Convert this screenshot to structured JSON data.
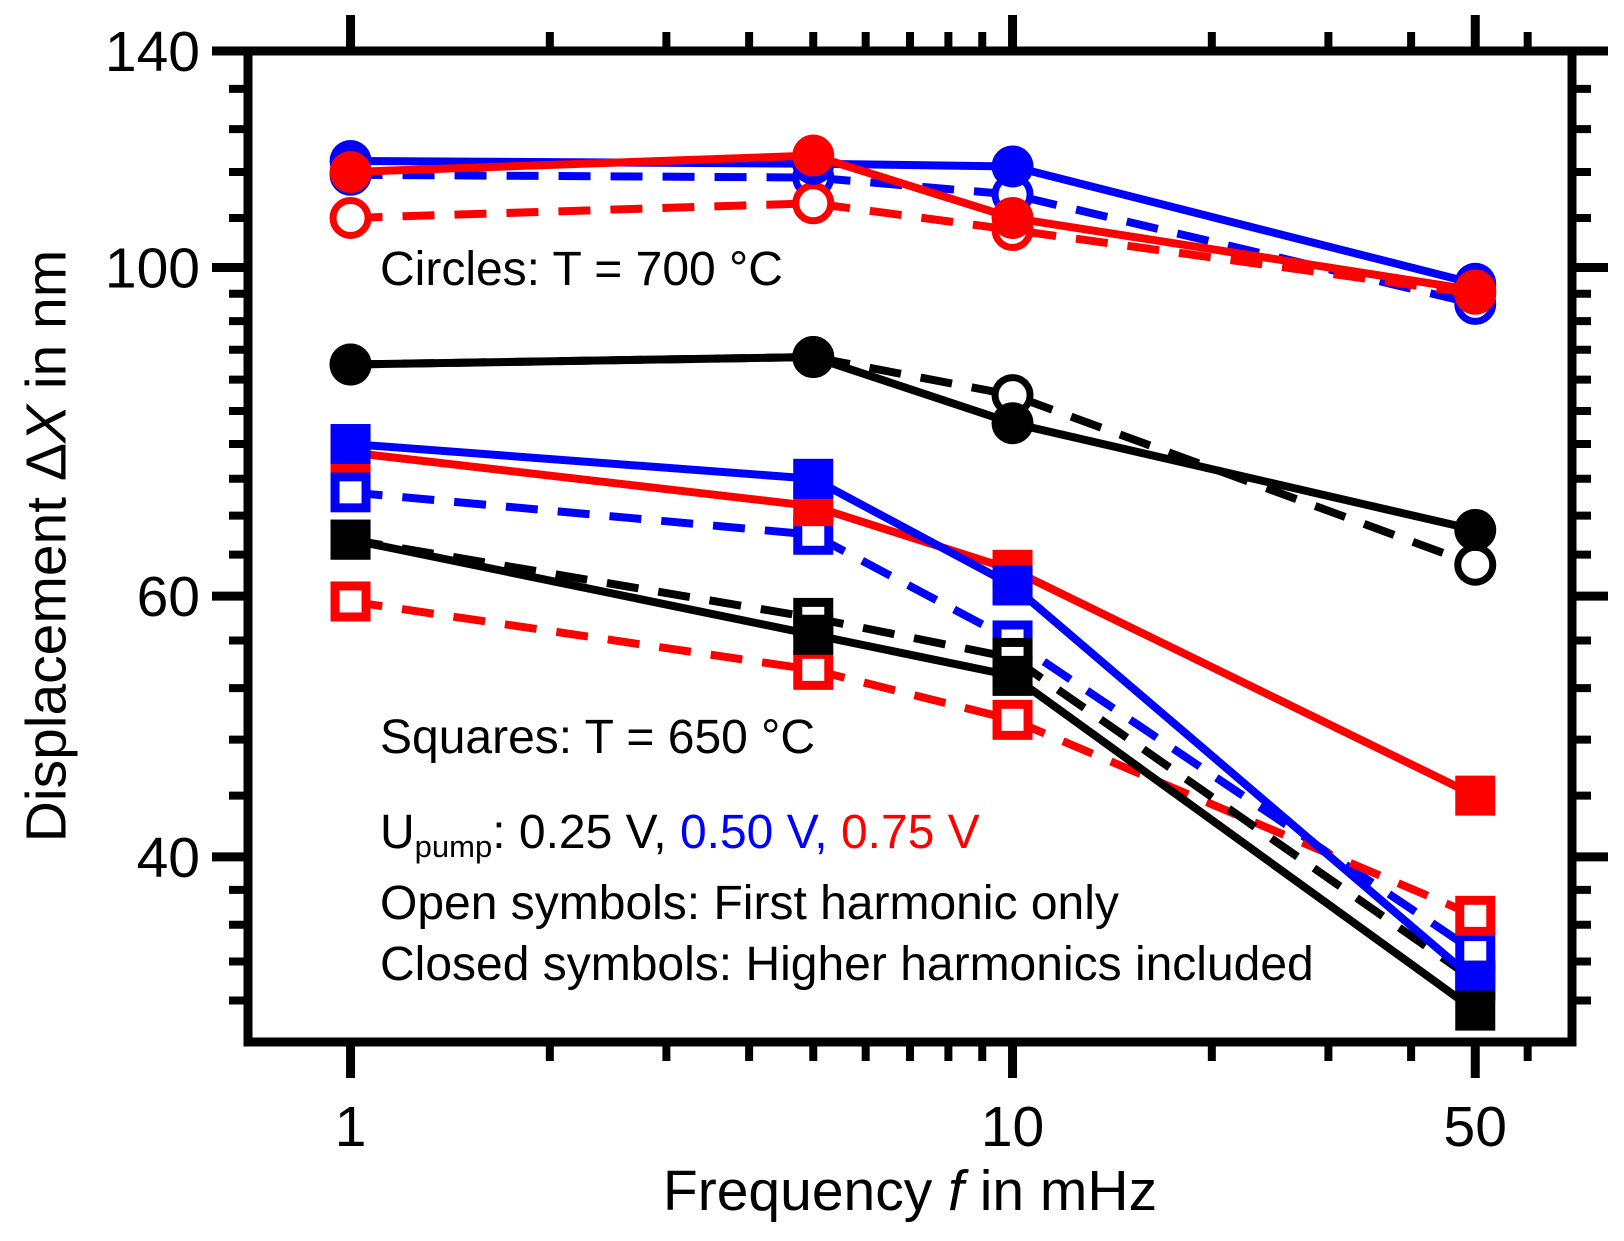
{
  "chart_data": {
    "type": "line",
    "title": "",
    "x_axis": {
      "label_parts": {
        "pre": "Frequency ",
        "italic": "f",
        "post": " in mHz"
      },
      "scale": "log",
      "lim": [
        0.7,
        70
      ],
      "major_ticks": [
        1,
        10,
        50
      ],
      "major_labels": [
        "1",
        "10",
        "50"
      ],
      "minor_ticks": [
        2,
        3,
        4,
        5,
        6,
        7,
        8,
        9,
        20,
        30,
        40,
        60
      ]
    },
    "y_axis": {
      "label_parts": {
        "pre": "Displacement Δ",
        "italic": "X",
        "post": " in nm"
      },
      "scale": "log",
      "lim": [
        30,
        140
      ],
      "major_ticks": [
        40,
        60,
        100,
        140
      ],
      "major_labels": [
        "40",
        "60",
        "100",
        "140"
      ],
      "minor_ticks": [
        32,
        34,
        36,
        38,
        44,
        48,
        52,
        56,
        64,
        68,
        72,
        76,
        80,
        84,
        88,
        92,
        96,
        108,
        116,
        124,
        132
      ]
    },
    "grid": false,
    "x": [
      1,
      5,
      10,
      50
    ],
    "series": [
      {
        "name": "T700 0.50V first-harmonic",
        "temperature": "700 °C",
        "u_pump": "0.50 V",
        "symbol": "circle",
        "fill": "open",
        "line": "dashed",
        "color": "#0000ff",
        "values": [
          115.5,
          115,
          112,
          94.5
        ]
      },
      {
        "name": "T700 0.75V first-harmonic",
        "temperature": "700 °C",
        "u_pump": "0.75 V",
        "symbol": "circle",
        "fill": "open",
        "line": "dashed",
        "color": "#ff0000",
        "values": [
          108,
          110.5,
          106,
          96
        ]
      },
      {
        "name": "T650 0.50V first-harmonic",
        "temperature": "650 °C",
        "u_pump": "0.50 V",
        "symbol": "square",
        "fill": "open",
        "line": "dashed",
        "color": "#0000ff",
        "values": [
          70.5,
          66,
          56,
          34.5
        ]
      },
      {
        "name": "T650 0.75V first-harmonic",
        "temperature": "650 °C",
        "u_pump": "0.75 V",
        "symbol": "square",
        "fill": "open",
        "line": "dashed",
        "color": "#ff0000",
        "values": [
          59.5,
          53.5,
          49.5,
          36.5
        ]
      },
      {
        "name": "T700 0.25V first-harmonic",
        "temperature": "700 °C",
        "u_pump": "0.25 V",
        "symbol": "circle",
        "fill": "open",
        "line": "dashed",
        "color": "#000000",
        "values": [
          86,
          87,
          82,
          63
        ]
      },
      {
        "name": "T650 0.25V first-harmonic",
        "temperature": "650 °C",
        "u_pump": "0.25 V",
        "symbol": "square",
        "fill": "open",
        "line": "dashed",
        "color": "#000000",
        "values": [
          65.5,
          58,
          54.5,
          33
        ]
      },
      {
        "name": "T700 0.50V higher-harmonics",
        "temperature": "700 °C",
        "u_pump": "0.50 V",
        "symbol": "circle",
        "fill": "closed",
        "line": "solid",
        "color": "#0000ff",
        "values": [
          118,
          117.5,
          117,
          97.5
        ]
      },
      {
        "name": "T700 0.75V higher-harmonics",
        "temperature": "700 °C",
        "u_pump": "0.75 V",
        "symbol": "circle",
        "fill": "closed",
        "line": "solid",
        "color": "#ff0000",
        "values": [
          116,
          119,
          108,
          96.5
        ]
      },
      {
        "name": "T650 0.75V higher-harmonics",
        "temperature": "650 °C",
        "u_pump": "0.75 V",
        "symbol": "square",
        "fill": "closed",
        "line": "solid",
        "color": "#ff0000",
        "values": [
          75,
          69,
          62.5,
          44
        ]
      },
      {
        "name": "T650 0.50V higher-harmonics",
        "temperature": "650 °C",
        "u_pump": "0.50 V",
        "symbol": "square",
        "fill": "closed",
        "line": "solid",
        "color": "#0000ff",
        "values": [
          76,
          72,
          61,
          33
        ]
      },
      {
        "name": "T700 0.25V higher-harmonics",
        "temperature": "700 °C",
        "u_pump": "0.25 V",
        "symbol": "circle",
        "fill": "closed",
        "line": "solid",
        "color": "#000000",
        "values": [
          86,
          87,
          78.5,
          66.5
        ]
      },
      {
        "name": "T650 0.25V higher-harmonics",
        "temperature": "650 °C",
        "u_pump": "0.25 V",
        "symbol": "square",
        "fill": "closed",
        "line": "solid",
        "color": "#000000",
        "values": [
          65.5,
          56.5,
          53,
          31.5
        ]
      }
    ],
    "annotations": {
      "circles_label": "Circles: T = 700 °C",
      "squares_label": "Squares: T = 650 °C",
      "u_prefix": "U",
      "u_sub": "pump",
      "u_black": ": 0.25 V, ",
      "u_blue": "0.50 V, ",
      "u_red": "0.75 V",
      "open_label": "Open symbols: First harmonic only",
      "closed_label": "Closed symbols: Higher harmonics included"
    },
    "colors": {
      "u_025": "#000000",
      "u_050": "#0000ff",
      "u_075": "#ff0000"
    },
    "legend_position": "none"
  }
}
